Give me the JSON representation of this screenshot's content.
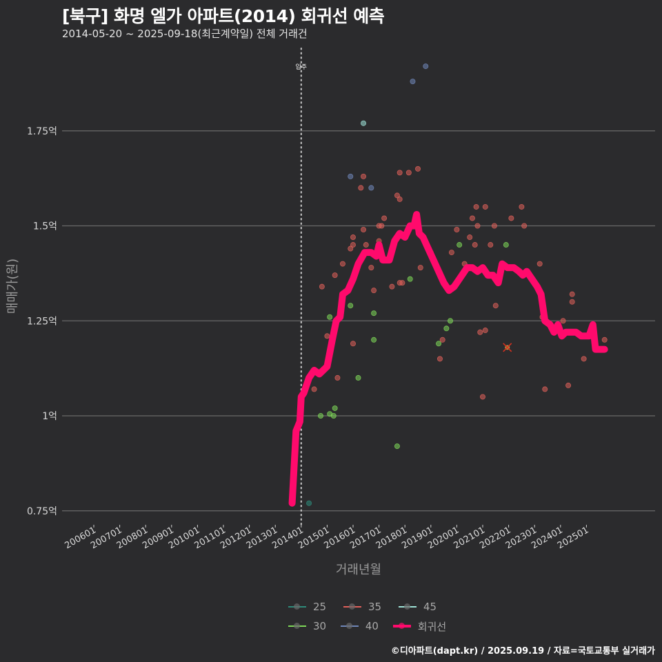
{
  "header": {
    "title": "[북구] 화명 엘가 아파트(2014) 회귀선 예측",
    "subtitle": "2014-05-20 ~ 2025-09-18(최근계약일) 전체 거래건"
  },
  "caption": "©디아파트(dapt.kr) / 2025.09.19 / 자료=국토교통부 실거래가",
  "colors": {
    "background": "#2b2b2d",
    "grid": "#6a6a6a",
    "regression": "#ff0a6c",
    "s25": "#2e8b7a",
    "s30": "#7ed957",
    "s35": "#e0605a",
    "s40": "#6f86b8",
    "s45": "#9fe3d8"
  },
  "legend": {
    "items": [
      {
        "key": "25",
        "label": "25",
        "color": "#2e8b7a"
      },
      {
        "key": "35",
        "label": "35",
        "color": "#e0605a"
      },
      {
        "key": "45",
        "label": "45",
        "color": "#9fe3d8"
      },
      {
        "key": "30",
        "label": "30",
        "color": "#7ed957"
      },
      {
        "key": "40",
        "label": "40",
        "color": "#6f86b8"
      },
      {
        "key": "reg",
        "label": "회귀선",
        "color": "#ff0a6c"
      }
    ]
  },
  "chart_data": {
    "type": "scatter",
    "title": "[북구] 화명 엘가 아파트(2014) 회귀선 예측",
    "subtitle": "2014-05-20 ~ 2025-09-18(최근계약일) 전체 거래건",
    "xlabel": "거래년월",
    "ylabel": "매매가(원)",
    "x_ticks": [
      "200601",
      "200701",
      "200801",
      "200901",
      "201001",
      "201101",
      "201201",
      "201301",
      "201401",
      "201501",
      "201601",
      "201701",
      "201801",
      "201901",
      "202001",
      "202101",
      "202201",
      "202301",
      "202401",
      "202501"
    ],
    "y_ticks": [
      0.75,
      1.0,
      1.25,
      1.5,
      1.75
    ],
    "y_tick_labels": [
      "0.75억",
      "1억",
      "1.25억",
      "1.5억",
      "1.75억"
    ],
    "ylim": [
      0.72,
      1.97
    ],
    "xlim": [
      2005.3,
      2026.1
    ],
    "grid": "horizontal",
    "legend_position": "bottom",
    "annotation": {
      "label": "입주",
      "x": 2014.0
    },
    "series": [
      {
        "name": "25",
        "points": [
          [
            2014.3,
            0.77
          ]
        ]
      },
      {
        "name": "30",
        "points": [
          [
            2014.75,
            1.0
          ],
          [
            2015.1,
            1.005
          ],
          [
            2015.25,
            1.0
          ],
          [
            2015.3,
            1.02
          ],
          [
            2015.1,
            1.26
          ],
          [
            2015.9,
            1.29
          ],
          [
            2016.2,
            1.1
          ],
          [
            2016.8,
            1.27
          ],
          [
            2016.8,
            1.2
          ],
          [
            2017.7,
            0.92
          ],
          [
            2018.2,
            1.36
          ],
          [
            2019.3,
            1.19
          ],
          [
            2019.6,
            1.23
          ],
          [
            2019.75,
            1.25
          ],
          [
            2020.1,
            1.45
          ],
          [
            2021.9,
            1.45
          ]
        ]
      },
      {
        "name": "35",
        "points": [
          [
            2014.5,
            1.07
          ],
          [
            2014.8,
            1.34
          ],
          [
            2015.0,
            1.21
          ],
          [
            2015.3,
            1.37
          ],
          [
            2015.4,
            1.1
          ],
          [
            2015.6,
            1.4
          ],
          [
            2015.9,
            1.44
          ],
          [
            2016.0,
            1.45
          ],
          [
            2016.0,
            1.47
          ],
          [
            2016.0,
            1.19
          ],
          [
            2016.4,
            1.49
          ],
          [
            2016.3,
            1.6
          ],
          [
            2016.4,
            1.63
          ],
          [
            2016.5,
            1.45
          ],
          [
            2016.7,
            1.39
          ],
          [
            2016.8,
            1.33
          ],
          [
            2017.0,
            1.46
          ],
          [
            2017.0,
            1.5
          ],
          [
            2017.1,
            1.5
          ],
          [
            2017.2,
            1.52
          ],
          [
            2017.5,
            1.34
          ],
          [
            2017.7,
            1.58
          ],
          [
            2017.8,
            1.57
          ],
          [
            2017.8,
            1.64
          ],
          [
            2017.8,
            1.35
          ],
          [
            2017.9,
            1.35
          ],
          [
            2018.15,
            1.64
          ],
          [
            2018.5,
            1.65
          ],
          [
            2018.6,
            1.39
          ],
          [
            2019.0,
            1.43
          ],
          [
            2019.35,
            1.15
          ],
          [
            2019.45,
            1.2
          ],
          [
            2019.8,
            1.43
          ],
          [
            2020.0,
            1.49
          ],
          [
            2020.3,
            1.4
          ],
          [
            2020.5,
            1.47
          ],
          [
            2020.6,
            1.52
          ],
          [
            2020.7,
            1.45
          ],
          [
            2020.75,
            1.55
          ],
          [
            2020.8,
            1.5
          ],
          [
            2020.9,
            1.22
          ],
          [
            2021.1,
            1.55
          ],
          [
            2021.3,
            1.45
          ],
          [
            2021.45,
            1.5
          ],
          [
            2021.5,
            1.29
          ],
          [
            2021.0,
            1.05
          ],
          [
            2021.1,
            1.225
          ],
          [
            2022.1,
            1.52
          ],
          [
            2022.5,
            1.55
          ],
          [
            2022.6,
            1.5
          ],
          [
            2023.2,
            1.4
          ],
          [
            2023.3,
            1.26
          ],
          [
            2023.4,
            1.07
          ],
          [
            2024.1,
            1.25
          ],
          [
            2024.3,
            1.08
          ],
          [
            2024.45,
            1.32
          ],
          [
            2024.45,
            1.3
          ],
          [
            2024.9,
            1.15
          ],
          [
            2025.7,
            1.2
          ]
        ]
      },
      {
        "name": "40",
        "points": [
          [
            2015.9,
            1.63
          ],
          [
            2016.7,
            1.6
          ],
          [
            2018.3,
            1.88
          ],
          [
            2018.8,
            1.92
          ]
        ]
      },
      {
        "name": "45",
        "points": [
          [
            2016.4,
            1.77
          ]
        ]
      }
    ],
    "outlier": {
      "x": 2021.95,
      "y": 1.18,
      "marker": "x"
    },
    "regression": {
      "name": "회귀선",
      "points": [
        [
          2013.65,
          0.77
        ],
        [
          2013.8,
          0.96
        ],
        [
          2013.95,
          0.985
        ],
        [
          2014.0,
          1.05
        ],
        [
          2014.1,
          1.06
        ],
        [
          2014.3,
          1.1
        ],
        [
          2014.5,
          1.12
        ],
        [
          2014.7,
          1.11
        ],
        [
          2014.85,
          1.12
        ],
        [
          2015.0,
          1.13
        ],
        [
          2015.2,
          1.2
        ],
        [
          2015.35,
          1.25
        ],
        [
          2015.5,
          1.26
        ],
        [
          2015.6,
          1.32
        ],
        [
          2015.8,
          1.33
        ],
        [
          2016.0,
          1.36
        ],
        [
          2016.2,
          1.4
        ],
        [
          2016.45,
          1.43
        ],
        [
          2016.7,
          1.43
        ],
        [
          2016.9,
          1.42
        ],
        [
          2017.0,
          1.45
        ],
        [
          2017.15,
          1.41
        ],
        [
          2017.4,
          1.41
        ],
        [
          2017.6,
          1.46
        ],
        [
          2017.8,
          1.48
        ],
        [
          2018.0,
          1.47
        ],
        [
          2018.2,
          1.5
        ],
        [
          2018.35,
          1.5
        ],
        [
          2018.45,
          1.53
        ],
        [
          2018.55,
          1.48
        ],
        [
          2018.7,
          1.47
        ],
        [
          2018.9,
          1.44
        ],
        [
          2019.1,
          1.41
        ],
        [
          2019.3,
          1.38
        ],
        [
          2019.5,
          1.35
        ],
        [
          2019.7,
          1.33
        ],
        [
          2019.9,
          1.34
        ],
        [
          2020.1,
          1.36
        ],
        [
          2020.4,
          1.39
        ],
        [
          2020.6,
          1.39
        ],
        [
          2020.8,
          1.38
        ],
        [
          2021.0,
          1.39
        ],
        [
          2021.2,
          1.37
        ],
        [
          2021.4,
          1.37
        ],
        [
          2021.6,
          1.35
        ],
        [
          2021.75,
          1.4
        ],
        [
          2021.95,
          1.39
        ],
        [
          2022.2,
          1.39
        ],
        [
          2022.4,
          1.38
        ],
        [
          2022.55,
          1.37
        ],
        [
          2022.7,
          1.38
        ],
        [
          2022.9,
          1.36
        ],
        [
          2023.1,
          1.34
        ],
        [
          2023.25,
          1.32
        ],
        [
          2023.4,
          1.25
        ],
        [
          2023.6,
          1.24
        ],
        [
          2023.75,
          1.22
        ],
        [
          2023.9,
          1.24
        ],
        [
          2024.05,
          1.21
        ],
        [
          2024.2,
          1.22
        ],
        [
          2024.6,
          1.22
        ],
        [
          2024.8,
          1.21
        ],
        [
          2025.1,
          1.21
        ],
        [
          2025.25,
          1.24
        ],
        [
          2025.35,
          1.175
        ],
        [
          2025.7,
          1.175
        ]
      ]
    }
  }
}
